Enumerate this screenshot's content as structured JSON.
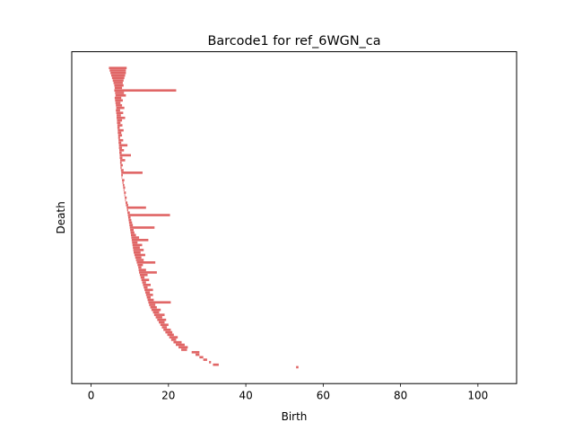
{
  "chart_data": {
    "type": "barcode",
    "title": "Barcode1 for ref_6WGN_ca",
    "xlabel": "Birth",
    "ylabel": "Death",
    "xlim": [
      -5,
      110
    ],
    "xticks": [
      0,
      20,
      40,
      60,
      80,
      100
    ],
    "yticks": [],
    "grid": false,
    "legend": "none",
    "bar_color": "#e06666",
    "bars": [
      [
        4.6,
        9.2
      ],
      [
        4.8,
        9.0
      ],
      [
        5.0,
        9.0
      ],
      [
        5.2,
        8.8
      ],
      [
        5.4,
        8.6
      ],
      [
        5.6,
        8.4
      ],
      [
        5.8,
        8.2
      ],
      [
        6.0,
        8.4
      ],
      [
        6.1,
        8.0
      ],
      [
        6.0,
        22.0
      ],
      [
        6.2,
        8.5
      ],
      [
        6.3,
        9.0
      ],
      [
        6.1,
        7.8
      ],
      [
        6.2,
        8.2
      ],
      [
        6.3,
        7.6
      ],
      [
        6.4,
        8.0
      ],
      [
        6.5,
        8.6
      ],
      [
        6.4,
        7.5
      ],
      [
        6.5,
        8.3
      ],
      [
        6.6,
        7.7
      ],
      [
        6.6,
        8.8
      ],
      [
        6.7,
        8.0
      ],
      [
        6.7,
        7.6
      ],
      [
        6.8,
        8.1
      ],
      [
        6.8,
        7.4
      ],
      [
        6.9,
        8.4
      ],
      [
        6.9,
        7.8
      ],
      [
        7.0,
        8.0
      ],
      [
        7.0,
        7.5
      ],
      [
        7.1,
        8.3
      ],
      [
        7.1,
        7.8
      ],
      [
        7.2,
        9.4
      ],
      [
        7.2,
        8.0
      ],
      [
        7.3,
        8.5
      ],
      [
        7.3,
        7.9
      ],
      [
        7.4,
        10.3
      ],
      [
        7.4,
        8.1
      ],
      [
        7.5,
        8.8
      ],
      [
        7.5,
        7.9
      ],
      [
        7.6,
        8.2
      ],
      [
        7.6,
        7.9
      ],
      [
        7.7,
        8.4
      ],
      [
        7.8,
        13.3
      ],
      [
        7.8,
        8.2
      ],
      [
        7.9,
        8.0
      ],
      [
        8.0,
        8.6
      ],
      [
        8.1,
        8.4
      ],
      [
        8.2,
        8.6
      ],
      [
        8.3,
        8.8
      ],
      [
        8.4,
        8.6
      ],
      [
        8.5,
        9.0
      ],
      [
        8.6,
        8.8
      ],
      [
        8.7,
        9.2
      ],
      [
        8.8,
        9.0
      ],
      [
        8.9,
        9.4
      ],
      [
        9.0,
        9.6
      ],
      [
        9.2,
        14.2
      ],
      [
        9.3,
        9.6
      ],
      [
        9.4,
        10.0
      ],
      [
        9.5,
        20.4
      ],
      [
        9.6,
        10.2
      ],
      [
        9.7,
        10.4
      ],
      [
        9.8,
        10.6
      ],
      [
        9.9,
        10.8
      ],
      [
        10.0,
        16.4
      ],
      [
        10.1,
        11.0
      ],
      [
        10.2,
        11.2
      ],
      [
        10.3,
        11.6
      ],
      [
        10.4,
        12.4
      ],
      [
        10.5,
        14.8
      ],
      [
        10.6,
        12.0
      ],
      [
        10.7,
        13.2
      ],
      [
        10.8,
        12.6
      ],
      [
        10.9,
        13.6
      ],
      [
        11.0,
        12.8
      ],
      [
        11.2,
        14.0
      ],
      [
        11.4,
        13.0
      ],
      [
        11.6,
        13.6
      ],
      [
        11.8,
        16.6
      ],
      [
        12.0,
        13.4
      ],
      [
        12.2,
        13.0
      ],
      [
        12.3,
        14.2
      ],
      [
        12.4,
        17.0
      ],
      [
        12.6,
        14.6
      ],
      [
        12.8,
        13.8
      ],
      [
        13.0,
        15.0
      ],
      [
        13.2,
        14.2
      ],
      [
        13.4,
        15.4
      ],
      [
        13.6,
        14.6
      ],
      [
        13.8,
        16.0
      ],
      [
        14.0,
        15.2
      ],
      [
        14.2,
        16.0
      ],
      [
        14.4,
        15.4
      ],
      [
        14.6,
        16.2
      ],
      [
        14.8,
        20.6
      ],
      [
        15.0,
        16.6
      ],
      [
        15.3,
        17.0
      ],
      [
        15.6,
        18.0
      ],
      [
        16.0,
        17.6
      ],
      [
        16.3,
        19.0
      ],
      [
        16.7,
        18.4
      ],
      [
        17.1,
        19.4
      ],
      [
        17.5,
        19.0
      ],
      [
        17.9,
        20.0
      ],
      [
        18.3,
        19.6
      ],
      [
        18.7,
        20.6
      ],
      [
        19.2,
        21.0
      ],
      [
        19.7,
        21.4
      ],
      [
        20.2,
        22.4
      ],
      [
        20.7,
        22.0
      ],
      [
        21.3,
        23.4
      ],
      [
        21.9,
        24.2
      ],
      [
        22.6,
        25.0
      ],
      [
        23.3,
        24.8
      ],
      [
        26.0,
        28.0
      ],
      [
        27.0,
        28.0
      ],
      [
        28.0,
        29.0
      ],
      [
        29.0,
        30.0
      ],
      [
        30.5,
        31.0
      ],
      [
        31.5,
        33.0
      ],
      [
        53.0,
        53.6
      ]
    ]
  }
}
